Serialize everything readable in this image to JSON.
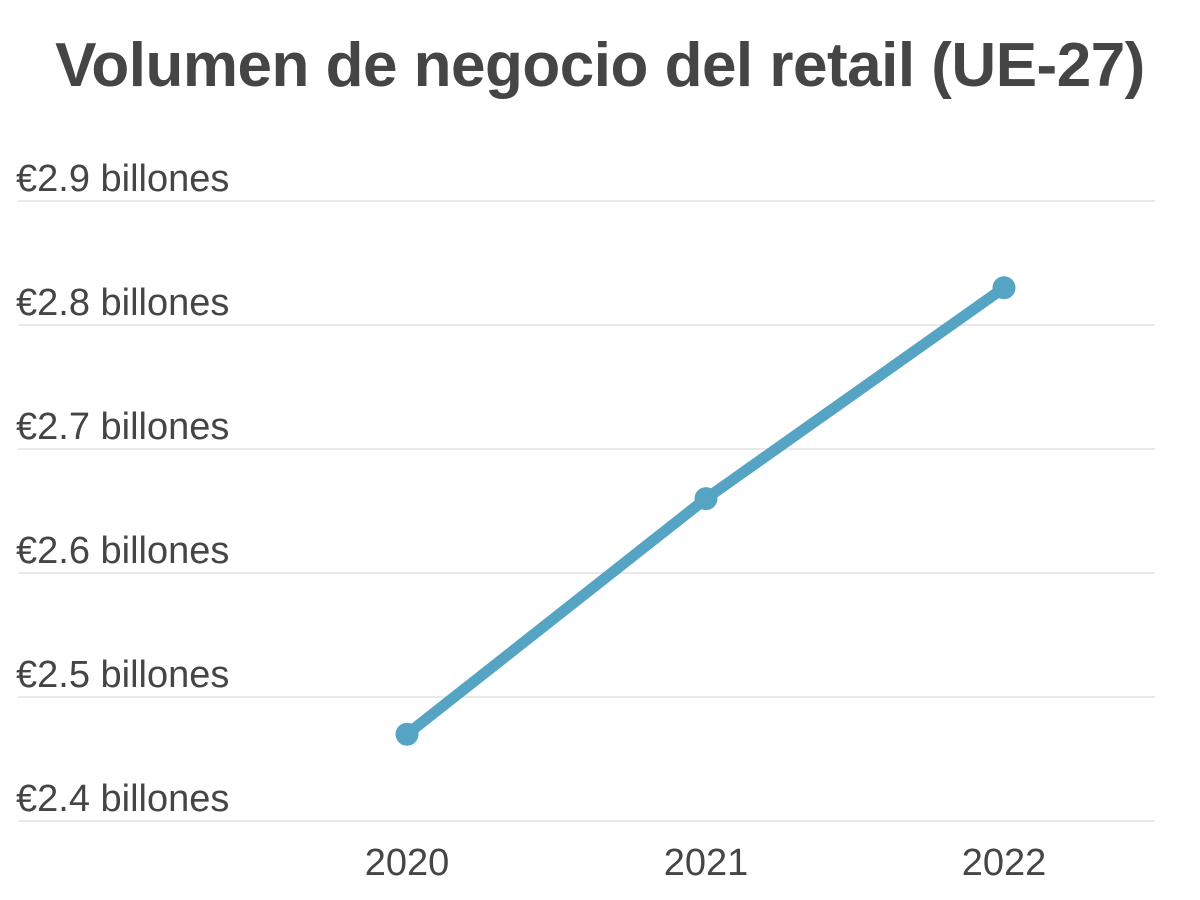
{
  "chart_data": {
    "type": "line",
    "title": "Volumen de negocio del retail (UE-27)",
    "xlabel": "",
    "ylabel": "",
    "categories": [
      "2020",
      "2021",
      "2022"
    ],
    "series": [
      {
        "values": [
          2.47,
          2.66,
          2.83
        ],
        "color": "#55a4c4"
      }
    ],
    "y_ticks": [
      2.4,
      2.5,
      2.6,
      2.7,
      2.8,
      2.9
    ],
    "y_tick_labels": [
      "€2.4 billones",
      "€2.5 billones",
      "€2.6 billones",
      "€2.7 billones",
      "€2.8 billones",
      "€2.9 billones"
    ],
    "ylim": [
      2.4,
      2.9
    ],
    "grid": true,
    "legend": "none"
  }
}
